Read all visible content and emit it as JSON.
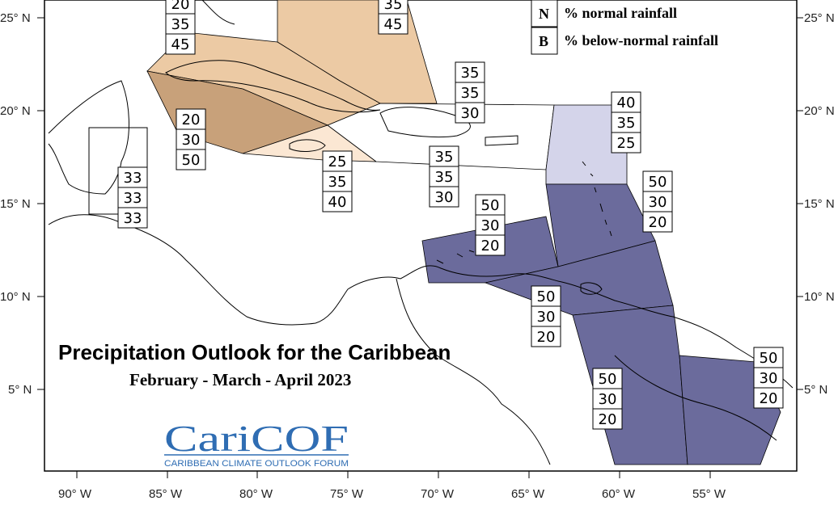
{
  "title": "Precipitation Outlook for the Caribbean",
  "subtitle": "February - March - April  2023",
  "logo": {
    "name": "CariCOF",
    "tagline": "CARIBBEAN CLIMATE OUTLOOK FORUM"
  },
  "legend": [
    {
      "letter": "N",
      "text": "% normal rainfall"
    },
    {
      "letter": "B",
      "text": "% below-normal rainfall"
    }
  ],
  "axes": {
    "lon_ticks": [
      "90° W",
      "85° W",
      "80° W",
      "75° W",
      "70° W",
      "65° W",
      "60° W",
      "55° W"
    ],
    "lat_ticks": [
      "25° N",
      "20° N",
      "15° N",
      "10° N",
      "5° N"
    ]
  },
  "colors": {
    "below_50": "#6b6b9c",
    "below_45": "#eccaa4",
    "below_50_brown": "#c8a17a",
    "below_40": "#fbe7d3",
    "below_25_lav": "#d4d4ea",
    "frame": "#000000",
    "logo_blue": "#2f6db3"
  },
  "forecast_boxes": [
    {
      "id": "north-florida",
      "values": [
        "20",
        "35",
        "45"
      ]
    },
    {
      "id": "bahamas",
      "values": [
        "35",
        "45"
      ]
    },
    {
      "id": "turks-caicos",
      "values": [
        "35",
        "35",
        "30"
      ]
    },
    {
      "id": "leeward-north",
      "values": [
        "40",
        "35",
        "25"
      ]
    },
    {
      "id": "western-caribbean",
      "values": [
        "20",
        "30",
        "50"
      ]
    },
    {
      "id": "belize",
      "values": [
        "33",
        "33",
        "33"
      ]
    },
    {
      "id": "jamaica",
      "values": [
        "25",
        "35",
        "40"
      ]
    },
    {
      "id": "hispaniola",
      "values": [
        "35",
        "35",
        "30"
      ]
    },
    {
      "id": "leeward-south",
      "values": [
        "50",
        "30",
        "20"
      ]
    },
    {
      "id": "abc-islands",
      "values": [
        "50",
        "30",
        "20"
      ]
    },
    {
      "id": "trinidad",
      "values": [
        "50",
        "30",
        "20"
      ]
    },
    {
      "id": "guyana",
      "values": [
        "50",
        "30",
        "20"
      ]
    },
    {
      "id": "suriname-guiana",
      "values": [
        "50",
        "30",
        "20"
      ]
    }
  ]
}
